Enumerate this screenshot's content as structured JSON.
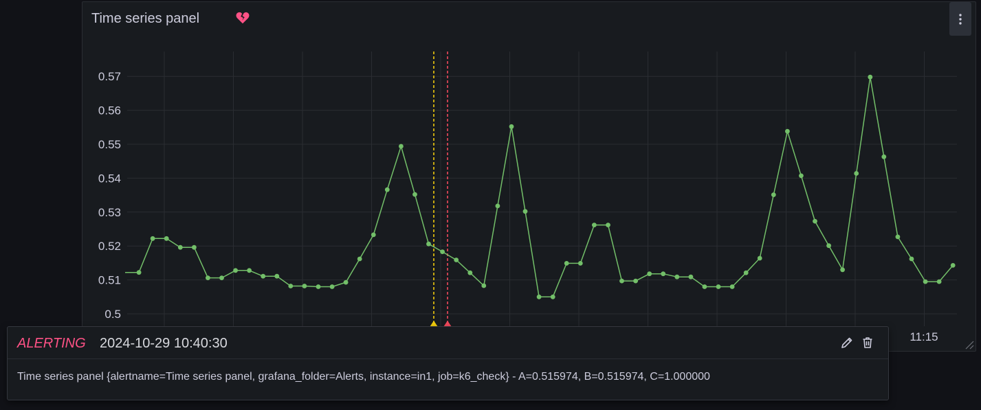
{
  "panel": {
    "title": "Time series panel",
    "state_icon": "heart-broken-icon",
    "menu_icon": "kebab-menu-icon",
    "resize_icon": "resize-handle-icon"
  },
  "chart_data": {
    "type": "line",
    "ylim": [
      0.497,
      0.577
    ],
    "y_ticks": [
      0.5,
      0.51,
      0.52,
      0.53,
      0.54,
      0.55,
      0.56,
      0.57
    ],
    "y_tick_labels": [
      "0.5",
      "0.51",
      "0.52",
      "0.53",
      "0.54",
      "0.55",
      "0.56",
      "0.57"
    ],
    "x_tick_labels": [
      "11:15"
    ],
    "grid": true,
    "line_color": "#73bf69",
    "series": [
      {
        "values": [
          0.5122,
          0.5122,
          0.5222,
          0.5222,
          0.5196,
          0.5196,
          0.5106,
          0.5106,
          0.5128,
          0.5128,
          0.5111,
          0.5111,
          0.5082,
          0.5082,
          0.508,
          0.508,
          0.5093,
          0.5162,
          0.5233,
          0.5366,
          0.5494,
          0.5352,
          0.5206,
          0.5183,
          0.5159,
          0.5121,
          0.5083,
          0.5318,
          0.5552,
          0.5302,
          0.505,
          0.505,
          0.5149,
          0.5149,
          0.5262,
          0.5262,
          0.5097,
          0.5097,
          0.5118,
          0.5118,
          0.5109,
          0.5109,
          0.508,
          0.508,
          0.508,
          0.5121,
          0.5164,
          0.5351,
          0.5538,
          0.5407,
          0.5273,
          0.5201,
          0.513,
          0.5414,
          0.5698,
          0.5463,
          0.5227,
          0.5162,
          0.5095,
          0.5095,
          0.5143
        ]
      }
    ],
    "annotations": [
      {
        "color": "#f2cc0c",
        "label": "yellow-dashed-marker"
      },
      {
        "color": "#f2495c",
        "label": "red-dashed-marker"
      }
    ]
  },
  "tooltip": {
    "state": "ALERTING",
    "time": "2024-10-29 10:40:30",
    "text": "Time series panel {alertname=Time series panel, grafana_folder=Alerts, instance=in1, job=k6_check} - A=0.515974, B=0.515974, C=1.000000",
    "edit_icon": "pencil-icon",
    "delete_icon": "trash-icon"
  },
  "colors": {
    "background": "#111217",
    "panel": "#181b1f",
    "alerting": "#ff5286",
    "series": "#73bf69"
  }
}
